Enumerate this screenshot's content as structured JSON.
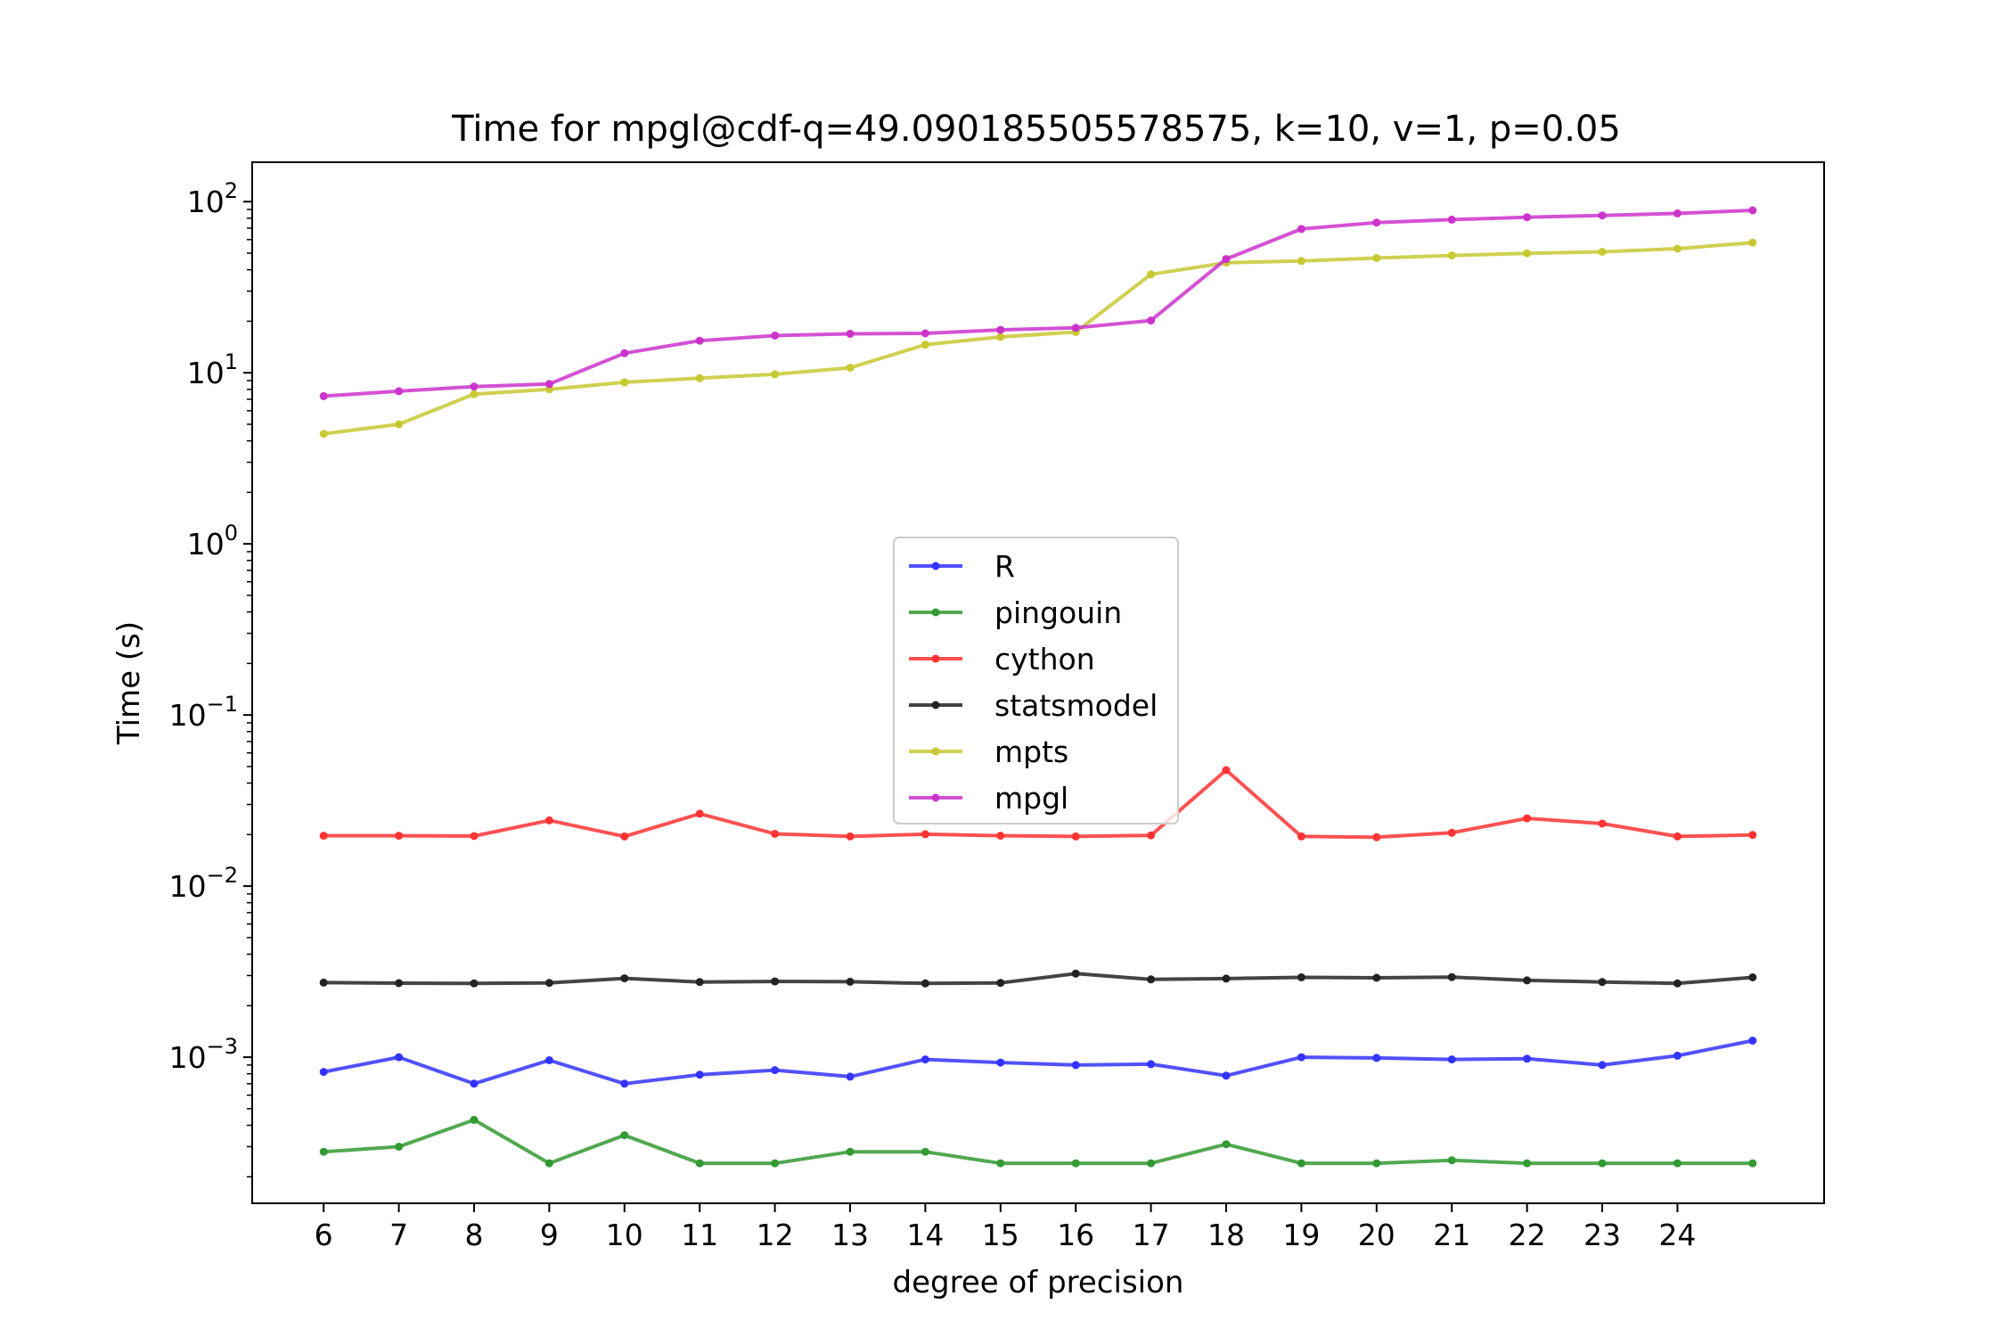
{
  "chart_data": {
    "type": "line",
    "title": "Time for mpgl@cdf-q=49.090185505578575, k=10, v=1, p=0.05",
    "xlabel": "degree of precision",
    "ylabel": "Time (s)",
    "yscale": "log",
    "ylim": [
      0.00014,
      170
    ],
    "xlim": [
      5.05,
      25.95
    ],
    "x": [
      6,
      7,
      8,
      9,
      10,
      11,
      12,
      13,
      14,
      15,
      16,
      17,
      18,
      19,
      20,
      21,
      22,
      23,
      24,
      25
    ],
    "xticks": [
      6,
      7,
      8,
      9,
      10,
      11,
      12,
      13,
      14,
      15,
      16,
      17,
      18,
      19,
      20,
      21,
      22,
      23,
      24
    ],
    "yticks": [
      {
        "value": 0.001,
        "base": "10",
        "exp": "−3"
      },
      {
        "value": 0.01,
        "base": "10",
        "exp": "−2"
      },
      {
        "value": 0.1,
        "base": "10",
        "exp": "−1"
      },
      {
        "value": 1,
        "base": "10",
        "exp": "0"
      },
      {
        "value": 10,
        "base": "10",
        "exp": "1"
      },
      {
        "value": 100,
        "base": "10",
        "exp": "2"
      }
    ],
    "grid": false,
    "legend_position": "center",
    "series": [
      {
        "name": "R",
        "color": "#3333ff",
        "values": [
          0.00082,
          0.001,
          0.0007,
          0.00096,
          0.0007,
          0.00079,
          0.00084,
          0.00077,
          0.00097,
          0.00093,
          0.0009,
          0.00091,
          0.00078,
          0.001,
          0.00099,
          0.00097,
          0.00098,
          0.0009,
          0.00102,
          0.00125
        ]
      },
      {
        "name": "pingouin",
        "color": "#339933",
        "values": [
          0.00028,
          0.0003,
          0.00043,
          0.00024,
          0.00035,
          0.00024,
          0.00024,
          0.00028,
          0.00028,
          0.00024,
          0.00024,
          0.00024,
          0.00031,
          0.00024,
          0.00024,
          0.00025,
          0.00024,
          0.00024,
          0.00024,
          0.00024
        ]
      },
      {
        "name": "cython",
        "color": "#ff3333",
        "values": [
          0.0197,
          0.0197,
          0.0196,
          0.0242,
          0.0195,
          0.0265,
          0.0202,
          0.0195,
          0.0201,
          0.0197,
          0.0195,
          0.0198,
          0.0476,
          0.0195,
          0.0193,
          0.0205,
          0.0249,
          0.0232,
          0.0195,
          0.0199
        ]
      },
      {
        "name": "statsmodel",
        "color": "#222222",
        "values": [
          0.00273,
          0.00271,
          0.0027,
          0.00272,
          0.00289,
          0.00275,
          0.00277,
          0.00276,
          0.0027,
          0.00272,
          0.00308,
          0.00285,
          0.00288,
          0.00293,
          0.00291,
          0.00294,
          0.00281,
          0.00275,
          0.0027,
          0.00293
        ]
      },
      {
        "name": "mpts",
        "color": "#c8c832",
        "values": [
          4.4,
          5.0,
          7.5,
          8.0,
          8.8,
          9.3,
          9.8,
          10.7,
          14.6,
          16.2,
          17.3,
          37.6,
          44.0,
          45.0,
          46.8,
          48.5,
          49.9,
          50.9,
          53.1,
          57.6
        ]
      },
      {
        "name": "mpgl",
        "color": "#cc33cc",
        "values": [
          7.3,
          7.8,
          8.3,
          8.6,
          13.0,
          15.4,
          16.5,
          16.9,
          17.0,
          17.8,
          18.3,
          20.2,
          46.2,
          69.2,
          75.5,
          78.5,
          81.1,
          83.1,
          85.4,
          88.9
        ]
      }
    ]
  }
}
